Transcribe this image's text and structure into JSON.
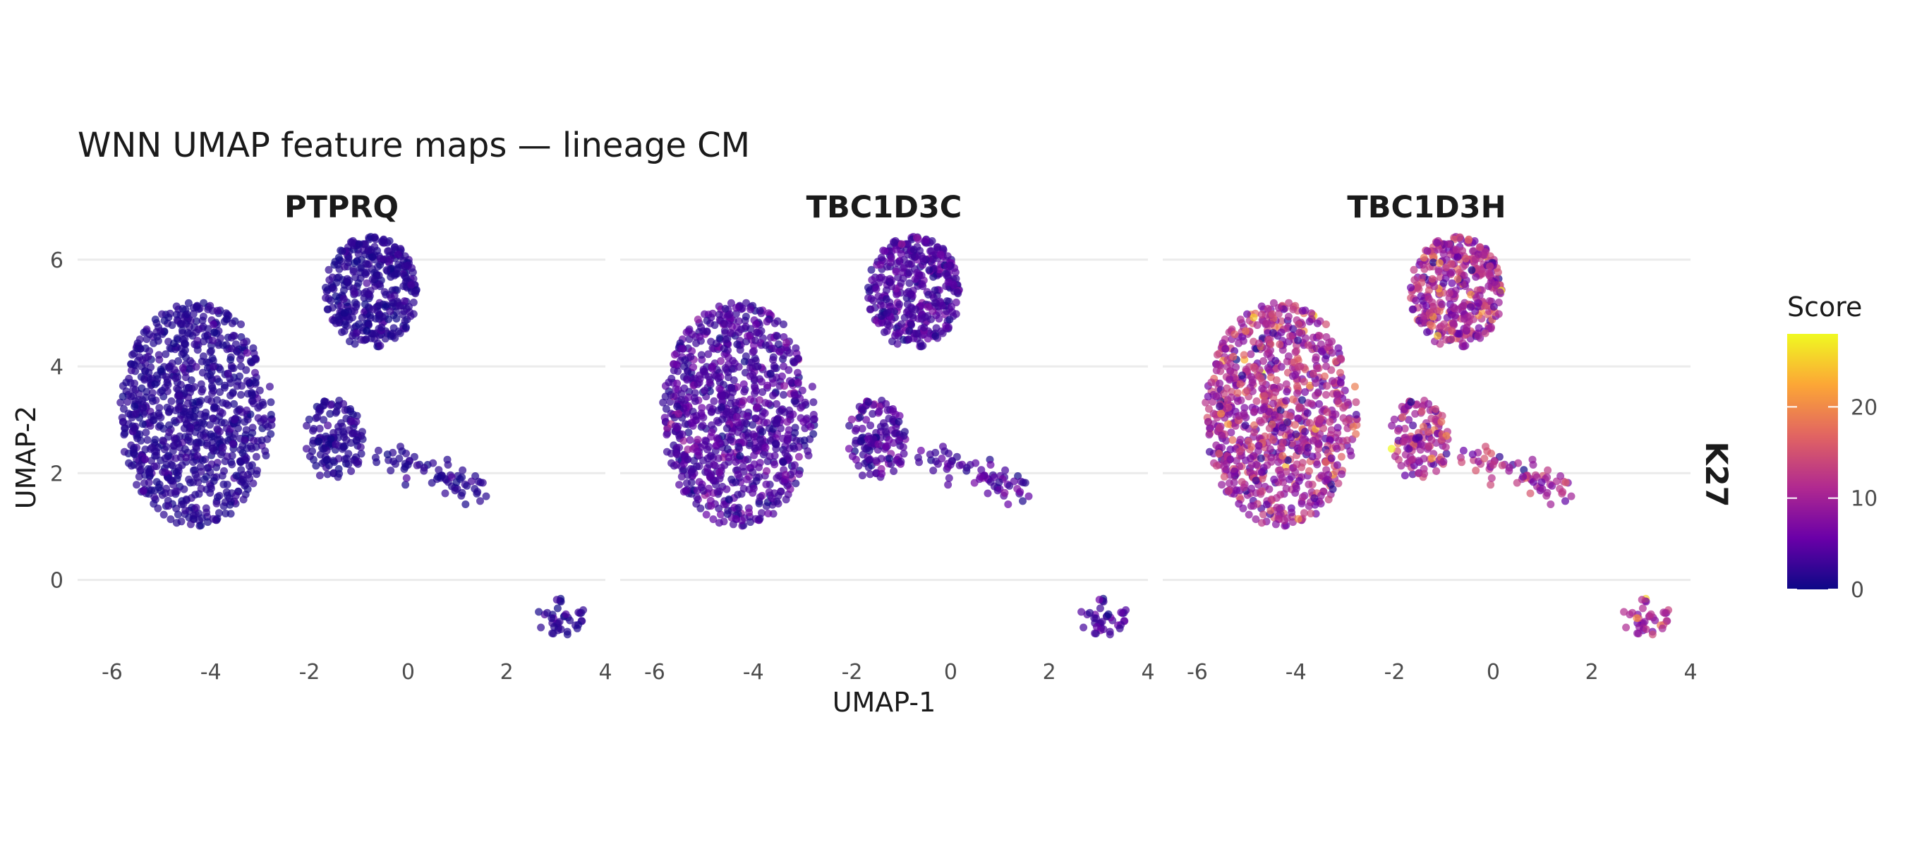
{
  "chart_data": {
    "type": "scatter",
    "title": "WNN UMAP feature maps — lineage CM",
    "xlabel": "UMAP-1",
    "ylabel": "UMAP-2",
    "row_label": "K27",
    "xlim": [
      -6.7,
      4.0
    ],
    "ylim": [
      -1.5,
      6.5
    ],
    "x_ticks": [
      -6,
      -4,
      -2,
      0,
      2,
      4
    ],
    "x_tick_labels": [
      "-6",
      "-4",
      "-2",
      "0",
      "2",
      "4"
    ],
    "y_ticks": [
      0,
      2,
      4,
      6
    ],
    "y_tick_labels": [
      "0",
      "2",
      "4",
      "6"
    ],
    "grid": true,
    "point_count_per_panel": 1500,
    "clusters": [
      {
        "name": "left",
        "center": [
          -4.3,
          3.1
        ],
        "radius": [
          1.55,
          2.1
        ],
        "share": 0.58
      },
      {
        "name": "top-right",
        "center": [
          -0.75,
          5.4
        ],
        "radius": [
          0.95,
          1.05
        ],
        "share": 0.25
      },
      {
        "name": "stem",
        "center": [
          -1.5,
          2.6
        ],
        "radius": [
          0.6,
          0.8
        ],
        "share": 0.09
      },
      {
        "name": "tail",
        "from": [
          -0.6,
          2.4
        ],
        "to": [
          1.6,
          1.6
        ],
        "share": 0.045
      },
      {
        "name": "bottom-islet",
        "center": [
          3.1,
          -0.7
        ],
        "radius": [
          0.5,
          0.35
        ],
        "share": 0.025
      }
    ],
    "panels": [
      {
        "gene": "PTPRQ",
        "score_mean": 1.5,
        "score_spread": 1.2
      },
      {
        "gene": "TBC1D3C",
        "score_mean": 3.5,
        "score_spread": 2.5
      },
      {
        "gene": "TBC1D3H",
        "score_mean": 10,
        "score_spread": 6
      }
    ],
    "legend": {
      "title": "Score",
      "position": "right",
      "min": 0,
      "max": 28,
      "ticks": [
        0,
        10,
        20
      ],
      "tick_labels": [
        "0",
        "10",
        "20"
      ],
      "colors": [
        "#0d0887",
        "#6a00a8",
        "#b12a90",
        "#e16462",
        "#fca636",
        "#f0f921"
      ]
    },
    "point_opacity": 0.7
  }
}
